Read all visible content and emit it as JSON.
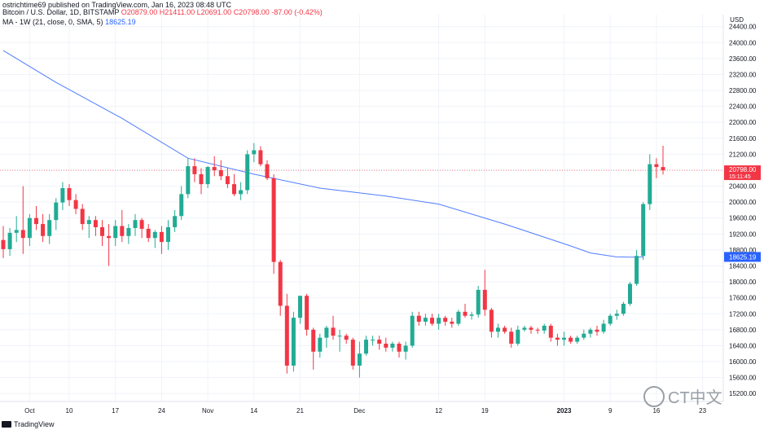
{
  "header": {
    "publisher": "ostrichtime69 published on TradingView.com, Jan 16, 2023 08:48 UTC",
    "symbol": "Bitcoin / U.S. Dollar, 1D, BITSTAMP",
    "ohlc": "O20879.00  H21411.00  L20691.00  C20798.00  -87.00 (-0.42%)",
    "ma_label": "MA - 1W (21, close, 0, SMA, 5)",
    "ma_value": "18625.19"
  },
  "currency": "USD",
  "footer": {
    "brand": "TradingView"
  },
  "watermark": {
    "text": "CT中文"
  },
  "colors": {
    "up": "#22ab94",
    "down": "#f23645",
    "ma": "#4f7cff",
    "grid": "#f0f3fa"
  },
  "chart_data": {
    "type": "candlestick",
    "y_ticks": [
      "24400.00",
      "24000.00",
      "23600.00",
      "23200.00",
      "22800.00",
      "22400.00",
      "22000.00",
      "21600.00",
      "21200.00",
      "20800.00",
      "20400.00",
      "20000.00",
      "19600.00",
      "19200.00",
      "18800.00",
      "18400.00",
      "18000.00",
      "17600.00",
      "17200.00",
      "16800.00",
      "16400.00",
      "16000.00",
      "15600.00",
      "15200.00"
    ],
    "y_range": [
      15000,
      24700
    ],
    "x_tick_labels": [
      {
        "day": 4,
        "label": "Oct"
      },
      {
        "day": 10,
        "label": "10"
      },
      {
        "day": 17,
        "label": "17"
      },
      {
        "day": 24,
        "label": "24"
      },
      {
        "day": 31,
        "label": "Nov"
      },
      {
        "day": 38,
        "label": "14"
      },
      {
        "day": 45,
        "label": "21"
      },
      {
        "day": 54,
        "label": "Dec"
      },
      {
        "day": 66,
        "label": "12"
      },
      {
        "day": 73,
        "label": "19"
      },
      {
        "day": 85,
        "label": "2023"
      },
      {
        "day": 92,
        "label": "9"
      },
      {
        "day": 99,
        "label": "16"
      },
      {
        "day": 106,
        "label": "23"
      }
    ],
    "last_price": {
      "value": 20798,
      "label": "20798.00",
      "countdown": "15:11:45"
    },
    "ma_last": {
      "value": 18625.19,
      "label": "18625.19"
    },
    "candles": [
      {
        "o": 19050,
        "h": 19400,
        "l": 18600,
        "c": 18820
      },
      {
        "o": 18820,
        "h": 19350,
        "l": 18650,
        "c": 19230
      },
      {
        "o": 19230,
        "h": 19650,
        "l": 19000,
        "c": 19300
      },
      {
        "o": 19300,
        "h": 20400,
        "l": 18700,
        "c": 19100
      },
      {
        "o": 19100,
        "h": 19700,
        "l": 18900,
        "c": 19600
      },
      {
        "o": 19600,
        "h": 19900,
        "l": 19300,
        "c": 19450
      },
      {
        "o": 19450,
        "h": 19700,
        "l": 19000,
        "c": 19150
      },
      {
        "o": 19150,
        "h": 19700,
        "l": 18950,
        "c": 19550
      },
      {
        "o": 19550,
        "h": 20100,
        "l": 19300,
        "c": 19990
      },
      {
        "o": 19990,
        "h": 20500,
        "l": 19800,
        "c": 20350
      },
      {
        "o": 20350,
        "h": 20450,
        "l": 19900,
        "c": 20050
      },
      {
        "o": 20050,
        "h": 20200,
        "l": 19700,
        "c": 19830
      },
      {
        "o": 19830,
        "h": 19950,
        "l": 19300,
        "c": 19450
      },
      {
        "o": 19450,
        "h": 19650,
        "l": 19100,
        "c": 19550
      },
      {
        "o": 19550,
        "h": 19650,
        "l": 19150,
        "c": 19370
      },
      {
        "o": 19370,
        "h": 19550,
        "l": 18900,
        "c": 19150
      },
      {
        "o": 19150,
        "h": 19450,
        "l": 18400,
        "c": 19100
      },
      {
        "o": 19100,
        "h": 19550,
        "l": 18900,
        "c": 19400
      },
      {
        "o": 19400,
        "h": 19800,
        "l": 19000,
        "c": 19150
      },
      {
        "o": 19150,
        "h": 19450,
        "l": 18950,
        "c": 19350
      },
      {
        "o": 19350,
        "h": 19700,
        "l": 19150,
        "c": 19550
      },
      {
        "o": 19550,
        "h": 19600,
        "l": 19100,
        "c": 19330
      },
      {
        "o": 19330,
        "h": 19450,
        "l": 19000,
        "c": 19100
      },
      {
        "o": 19100,
        "h": 19300,
        "l": 18850,
        "c": 19250
      },
      {
        "o": 19250,
        "h": 19400,
        "l": 18700,
        "c": 19000
      },
      {
        "o": 19000,
        "h": 19550,
        "l": 18800,
        "c": 19370
      },
      {
        "o": 19370,
        "h": 19800,
        "l": 19250,
        "c": 19650
      },
      {
        "o": 19650,
        "h": 20400,
        "l": 19550,
        "c": 20200
      },
      {
        "o": 20200,
        "h": 21100,
        "l": 20100,
        "c": 20900
      },
      {
        "o": 20900,
        "h": 21100,
        "l": 20500,
        "c": 20700
      },
      {
        "o": 20700,
        "h": 20850,
        "l": 20200,
        "c": 20450
      },
      {
        "o": 20450,
        "h": 20900,
        "l": 20350,
        "c": 20880
      },
      {
        "o": 20880,
        "h": 21150,
        "l": 20650,
        "c": 20800
      },
      {
        "o": 20800,
        "h": 21050,
        "l": 20550,
        "c": 20650
      },
      {
        "o": 20650,
        "h": 20850,
        "l": 20350,
        "c": 20450
      },
      {
        "o": 20450,
        "h": 20700,
        "l": 20150,
        "c": 20200
      },
      {
        "o": 20200,
        "h": 20500,
        "l": 20050,
        "c": 20300
      },
      {
        "o": 20300,
        "h": 21300,
        "l": 20200,
        "c": 21200
      },
      {
        "o": 21200,
        "h": 21480,
        "l": 21000,
        "c": 21300
      },
      {
        "o": 21300,
        "h": 21400,
        "l": 20900,
        "c": 20950
      },
      {
        "o": 20950,
        "h": 21050,
        "l": 20550,
        "c": 20600
      },
      {
        "o": 20600,
        "h": 20700,
        "l": 18200,
        "c": 18500
      },
      {
        "o": 18500,
        "h": 18550,
        "l": 17150,
        "c": 17400
      },
      {
        "o": 17400,
        "h": 17700,
        "l": 15700,
        "c": 15900
      },
      {
        "o": 15900,
        "h": 17250,
        "l": 15750,
        "c": 17100
      },
      {
        "o": 17100,
        "h": 17650,
        "l": 16950,
        "c": 17650
      },
      {
        "o": 17650,
        "h": 17700,
        "l": 16650,
        "c": 16800
      },
      {
        "o": 16800,
        "h": 16850,
        "l": 15800,
        "c": 16250
      },
      {
        "o": 16250,
        "h": 16700,
        "l": 16100,
        "c": 16600
      },
      {
        "o": 16600,
        "h": 16900,
        "l": 16350,
        "c": 16850
      },
      {
        "o": 16850,
        "h": 17150,
        "l": 16550,
        "c": 16650
      },
      {
        "o": 16650,
        "h": 16800,
        "l": 16250,
        "c": 16650
      },
      {
        "o": 16650,
        "h": 16700,
        "l": 16450,
        "c": 16550
      },
      {
        "o": 16550,
        "h": 16600,
        "l": 15800,
        "c": 15900
      },
      {
        "o": 15900,
        "h": 16500,
        "l": 15600,
        "c": 16200
      },
      {
        "o": 16200,
        "h": 16650,
        "l": 16150,
        "c": 16550
      },
      {
        "o": 16550,
        "h": 16650,
        "l": 16400,
        "c": 16550
      },
      {
        "o": 16550,
        "h": 16650,
        "l": 16300,
        "c": 16450
      },
      {
        "o": 16450,
        "h": 16600,
        "l": 16250,
        "c": 16350
      },
      {
        "o": 16350,
        "h": 16500,
        "l": 16250,
        "c": 16450
      },
      {
        "o": 16450,
        "h": 16500,
        "l": 16100,
        "c": 16250
      },
      {
        "o": 16250,
        "h": 16500,
        "l": 16050,
        "c": 16400
      },
      {
        "o": 16400,
        "h": 17250,
        "l": 16350,
        "c": 17150
      },
      {
        "o": 17150,
        "h": 17250,
        "l": 16900,
        "c": 17000
      },
      {
        "o": 17000,
        "h": 17200,
        "l": 16900,
        "c": 17100
      },
      {
        "o": 17100,
        "h": 17200,
        "l": 16900,
        "c": 16950
      },
      {
        "o": 16950,
        "h": 17200,
        "l": 16800,
        "c": 17100
      },
      {
        "o": 17100,
        "h": 17150,
        "l": 16900,
        "c": 17000
      },
      {
        "o": 17000,
        "h": 17100,
        "l": 16850,
        "c": 16950
      },
      {
        "o": 16950,
        "h": 17300,
        "l": 16900,
        "c": 17250
      },
      {
        "o": 17250,
        "h": 17450,
        "l": 17100,
        "c": 17150
      },
      {
        "o": 17150,
        "h": 17250,
        "l": 17050,
        "c": 17180
      },
      {
        "o": 17180,
        "h": 17900,
        "l": 17100,
        "c": 17800
      },
      {
        "o": 17800,
        "h": 18300,
        "l": 17150,
        "c": 17300
      },
      {
        "o": 17300,
        "h": 17350,
        "l": 16600,
        "c": 16750
      },
      {
        "o": 16750,
        "h": 16950,
        "l": 16600,
        "c": 16850
      },
      {
        "o": 16850,
        "h": 16900,
        "l": 16700,
        "c": 16750
      },
      {
        "o": 16750,
        "h": 16850,
        "l": 16350,
        "c": 16450
      },
      {
        "o": 16450,
        "h": 16900,
        "l": 16400,
        "c": 16800
      },
      {
        "o": 16800,
        "h": 16900,
        "l": 16750,
        "c": 16850
      },
      {
        "o": 16850,
        "h": 16900,
        "l": 16700,
        "c": 16800
      },
      {
        "o": 16800,
        "h": 16850,
        "l": 16700,
        "c": 16780
      },
      {
        "o": 16780,
        "h": 16950,
        "l": 16700,
        "c": 16900
      },
      {
        "o": 16900,
        "h": 16950,
        "l": 16500,
        "c": 16600
      },
      {
        "o": 16600,
        "h": 16700,
        "l": 16400,
        "c": 16550
      },
      {
        "o": 16550,
        "h": 16750,
        "l": 16400,
        "c": 16600
      },
      {
        "o": 16600,
        "h": 16650,
        "l": 16450,
        "c": 16500
      },
      {
        "o": 16500,
        "h": 16650,
        "l": 16450,
        "c": 16600
      },
      {
        "o": 16600,
        "h": 16800,
        "l": 16550,
        "c": 16700
      },
      {
        "o": 16700,
        "h": 16850,
        "l": 16600,
        "c": 16800
      },
      {
        "o": 16800,
        "h": 16900,
        "l": 16650,
        "c": 16750
      },
      {
        "o": 16750,
        "h": 17050,
        "l": 16700,
        "c": 16950
      },
      {
        "o": 16950,
        "h": 17200,
        "l": 16900,
        "c": 17150
      },
      {
        "o": 17150,
        "h": 17300,
        "l": 17050,
        "c": 17200
      },
      {
        "o": 17200,
        "h": 17500,
        "l": 17150,
        "c": 17450
      },
      {
        "o": 17450,
        "h": 18000,
        "l": 17400,
        "c": 17950
      },
      {
        "o": 17950,
        "h": 18800,
        "l": 17900,
        "c": 18650
      },
      {
        "o": 18650,
        "h": 20000,
        "l": 18550,
        "c": 19950
      },
      {
        "o": 19950,
        "h": 21200,
        "l": 19800,
        "c": 20950
      },
      {
        "o": 20950,
        "h": 21100,
        "l": 20600,
        "c": 20880
      },
      {
        "o": 20879,
        "h": 21411,
        "l": 20691,
        "c": 20798
      }
    ],
    "ma_points": [
      {
        "day": 0,
        "v": 23800
      },
      {
        "day": 8,
        "v": 23000
      },
      {
        "day": 18,
        "v": 22100
      },
      {
        "day": 28,
        "v": 21100
      },
      {
        "day": 38,
        "v": 20700
      },
      {
        "day": 48,
        "v": 20350
      },
      {
        "day": 58,
        "v": 20150
      },
      {
        "day": 66,
        "v": 19950
      },
      {
        "day": 76,
        "v": 19450
      },
      {
        "day": 86,
        "v": 18900
      },
      {
        "day": 89,
        "v": 18725
      },
      {
        "day": 93,
        "v": 18625
      },
      {
        "day": 95,
        "v": 18620
      },
      {
        "day": 97,
        "v": 18625.19
      }
    ]
  }
}
